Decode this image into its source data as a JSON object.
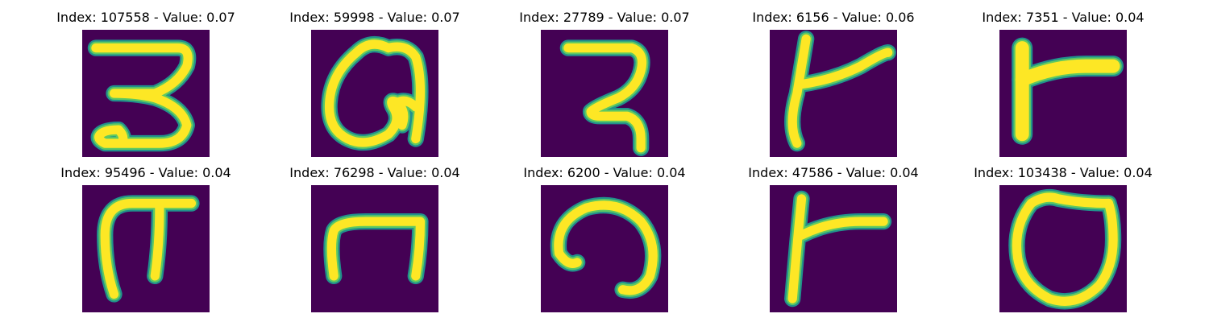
{
  "colors": {
    "background": "#440154",
    "stroke_edge": "#21918c",
    "stroke_mid": "#5ec962",
    "stroke_core": "#fde725"
  },
  "panels": [
    {
      "title": "Index: 107558 - Value: 0.07",
      "glyph": "digit-three-like"
    },
    {
      "title": "Index: 59998 - Value: 0.07",
      "glyph": "loop-with-inner-curl"
    },
    {
      "title": "Index: 27789 - Value: 0.07",
      "glyph": "bent-hook"
    },
    {
      "title": "Index: 6156 - Value: 0.06",
      "glyph": "vertical-with-branch"
    },
    {
      "title": "Index: 7351 - Value: 0.04",
      "glyph": "thick-vertical-with-branch"
    },
    {
      "title": "Index: 95496 - Value: 0.04",
      "glyph": "arch-with-double-legs"
    },
    {
      "title": "Index: 76298 - Value: 0.04",
      "glyph": "open-bottom-arch"
    },
    {
      "title": "Index: 6200 - Value: 0.04",
      "glyph": "open-loop-curve"
    },
    {
      "title": "Index: 47586 - Value: 0.04",
      "glyph": "vertical-with-branch-short"
    },
    {
      "title": "Index: 103438 - Value: 0.04",
      "glyph": "closed-loop"
    }
  ]
}
